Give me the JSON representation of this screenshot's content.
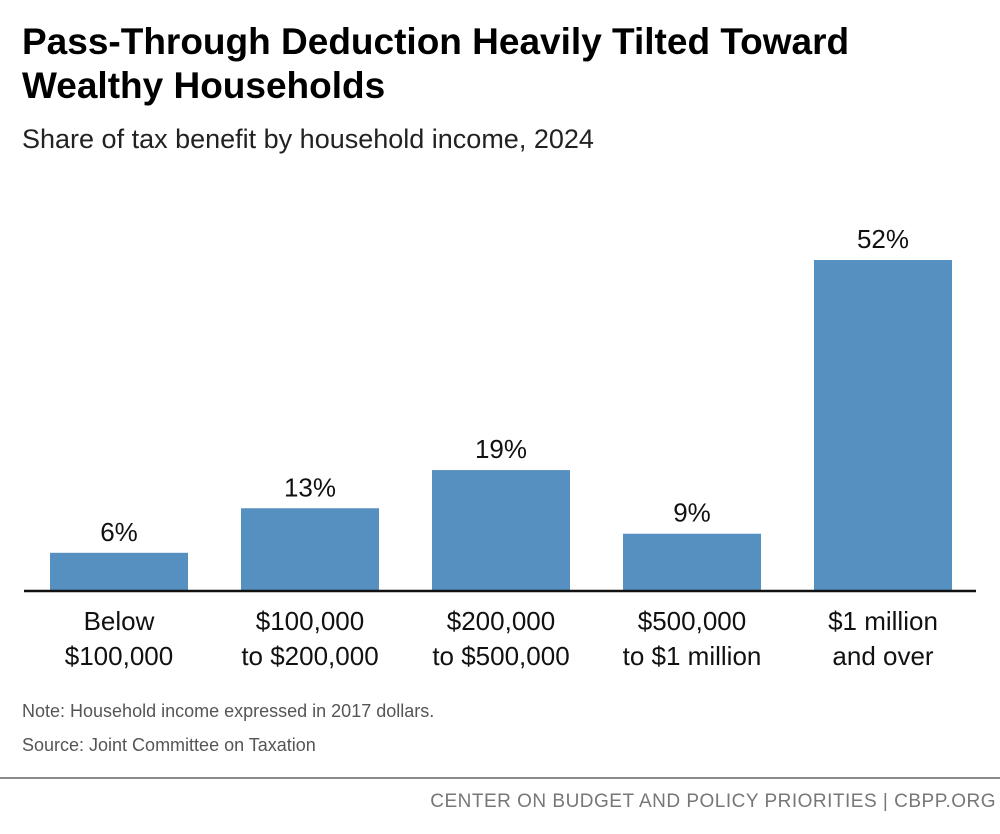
{
  "chart_data": {
    "type": "bar",
    "title": "Pass-Through Deduction Heavily Tilted Toward Wealthy Households",
    "subtitle": "Share of tax benefit by household income, 2024",
    "categories": [
      [
        "Below",
        "$100,000"
      ],
      [
        "$100,000",
        "to $200,000"
      ],
      [
        "$200,000",
        "to $500,000"
      ],
      [
        "$500,000",
        "to $1 million"
      ],
      [
        "$1 million",
        "and over"
      ]
    ],
    "values": [
      6,
      13,
      19,
      9,
      52
    ],
    "value_labels": [
      "6%",
      "13%",
      "19%",
      "9%",
      "52%"
    ],
    "xlabel": "",
    "ylabel": "",
    "ylim": [
      0,
      52
    ],
    "bar_color": "#5690c0",
    "axis_color": "#111111",
    "grid": false
  },
  "note": "Note: Household income expressed in 2017 dollars.",
  "source": "Source: Joint Committee on Taxation",
  "footer": "CENTER ON BUDGET AND POLICY PRIORITIES | CBPP.ORG"
}
